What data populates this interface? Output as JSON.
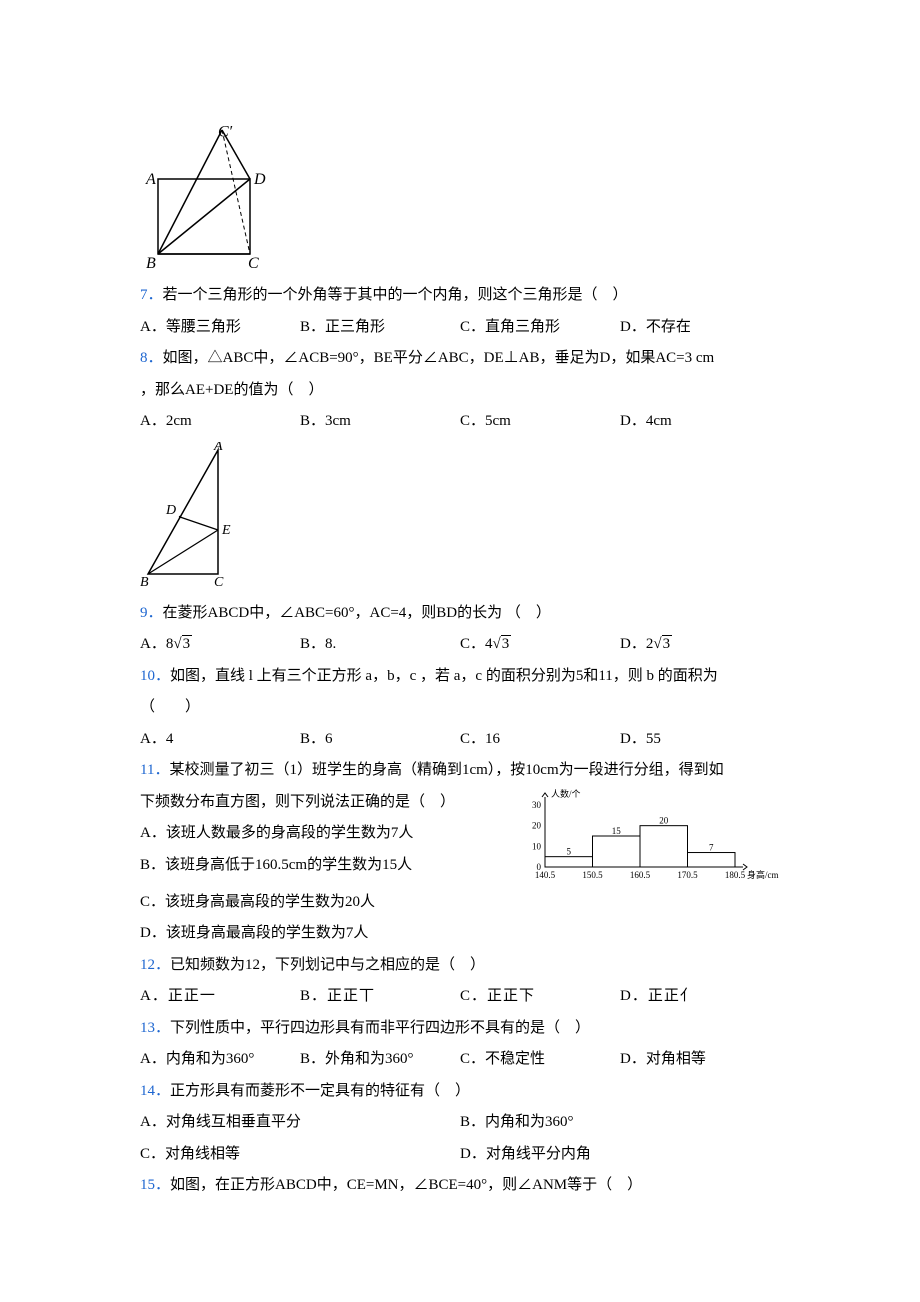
{
  "figure1": {
    "labels": {
      "A": "A",
      "B": "B",
      "C": "C",
      "D": "D",
      "Cp": "C′"
    }
  },
  "q7": {
    "num": "7．",
    "text": "若一个三角形的一个外角等于其中的一个内角，则这个三角形是（　）",
    "opts": {
      "A": "A．等腰三角形",
      "B": "B．正三角形",
      "C": "C．直角三角形",
      "D": "D．不存在"
    }
  },
  "q8": {
    "num": "8．",
    "text_a": "如图，△ABC中，∠ACB=90°，BE平分∠ABC，DE⊥AB，垂足为D，如果AC=3 cm",
    "text_b": "，那么AE+DE的值为（　）",
    "opts": {
      "A": "A．2cm",
      "B": "B．3cm",
      "C": "C．5cm",
      "D": "D．4cm"
    },
    "fig_labels": {
      "A": "A",
      "B": "B",
      "C": "C",
      "D": "D",
      "E": "E"
    }
  },
  "q9": {
    "num": "9．",
    "text": "在菱形ABCD中，∠ABC=60°，AC=4，则BD的长为 （　）",
    "opts": {
      "A_pre": "A．8",
      "A_rad": "3",
      "B": "B．8.",
      "C_pre": "C．4",
      "C_rad": "3",
      "D_pre": "D．2",
      "D_rad": "3"
    }
  },
  "q10": {
    "num": "10．",
    "text_a": "如图，直线 l 上有三个正方形 a，b，c ，若 a，c 的面积分别为5和11，则 b 的面积为",
    "text_b": "（　　）",
    "opts": {
      "A": "A．4",
      "B": "B．6",
      "C": "C．16",
      "D": "D．55"
    }
  },
  "q11": {
    "num": "11．",
    "text_a": "某校测量了初三（1）班学生的身高（精确到1cm），按10cm为一段进行分组，得到如",
    "text_b": "下频数分布直方图，则下列说法正确的是（　）",
    "opts": {
      "A": "A．该班人数最多的身高段的学生数为7人",
      "B": "B．该班身高低于160.5cm的学生数为15人",
      "C": "C．该班身高最高段的学生数为20人",
      "D": "D．该班身高最高段的学生数为7人"
    },
    "chart": {
      "y_label": "人数/个",
      "x_label": "身高/cm",
      "y_ticks": [
        "0",
        "10",
        "20",
        "30"
      ],
      "x_ticks": [
        "140.5",
        "150.5",
        "160.5",
        "170.5",
        "180.5"
      ],
      "bars": [
        {
          "value": 5,
          "label": "5"
        },
        {
          "value": 15,
          "label": "15"
        },
        {
          "value": 20,
          "label": "20"
        },
        {
          "value": 7,
          "label": "7"
        }
      ],
      "y_max": 30,
      "bar_color": "#ffffff",
      "border_color": "#000000",
      "label_fontsize": 9
    }
  },
  "q12": {
    "num": "12．",
    "text": "已知频数为12，下列划记中与之相应的是（　）",
    "opts": {
      "A": "A．正正一",
      "B": "B．正正丅",
      "C": "C．正正下",
      "D": "D．正正⺅"
    }
  },
  "q13": {
    "num": "13．",
    "text": "下列性质中，平行四边形具有而非平行四边形不具有的是（　）",
    "opts": {
      "A": "A．内角和为360°",
      "B": "B．外角和为360°",
      "C": "C．不稳定性",
      "D": "D．对角相等"
    }
  },
  "q14": {
    "num": "14．",
    "text": "正方形具有而菱形不一定具有的特征有（　）",
    "opts": {
      "A": "A．对角线互相垂直平分",
      "B": "B．内角和为360°",
      "C": "C．对角线相等",
      "D": "D．对角线平分内角"
    }
  },
  "q15": {
    "num": "15．",
    "text": "如图，在正方形ABCD中，CE=MN，∠BCE=40°，则∠ANM等于（　）"
  }
}
